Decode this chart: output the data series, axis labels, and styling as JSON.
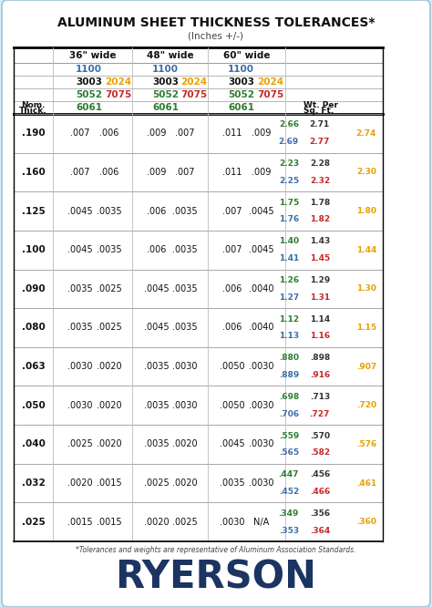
{
  "title": "ALUMINUM SHEET THICKNESS TOLERANCES*",
  "subtitle": "(Inches +/-)",
  "footnote": "*Tolerances and weights are representative of Aluminum Association Standards.",
  "bg_color": "#ddeef8",
  "card_color": "#ffffff",
  "header_row1": [
    "36\" wide",
    "48\" wide",
    "60\" wide"
  ],
  "ryerson_color": "#1c3461",
  "data_rows": [
    {
      "thick": ".190",
      "tol36": [
        ".007",
        ".006"
      ],
      "tol48": [
        ".009",
        ".007"
      ],
      "tol60": [
        ".011",
        ".009"
      ],
      "wt_line1": [
        {
          "text": "2.66",
          "color": "#2e7d32"
        },
        {
          "text": "2.71",
          "color": "#333333"
        }
      ],
      "wt_line2": [
        {
          "text": "2.69",
          "color": "#3b6daa"
        },
        {
          "text": "2.77",
          "color": "#c62828"
        }
      ],
      "wt_2024": {
        "text": "2.74",
        "color": "#e8a000"
      }
    },
    {
      "thick": ".160",
      "tol36": [
        ".007",
        ".006"
      ],
      "tol48": [
        ".009",
        ".007"
      ],
      "tol60": [
        ".011",
        ".009"
      ],
      "wt_line1": [
        {
          "text": "2.23",
          "color": "#2e7d32"
        },
        {
          "text": "2.28",
          "color": "#333333"
        }
      ],
      "wt_line2": [
        {
          "text": "2.25",
          "color": "#3b6daa"
        },
        {
          "text": "2.32",
          "color": "#c62828"
        }
      ],
      "wt_2024": {
        "text": "2.30",
        "color": "#e8a000"
      }
    },
    {
      "thick": ".125",
      "tol36": [
        ".0045",
        ".0035"
      ],
      "tol48": [
        ".006",
        ".0035"
      ],
      "tol60": [
        ".007",
        ".0045"
      ],
      "wt_line1": [
        {
          "text": "1.75",
          "color": "#2e7d32"
        },
        {
          "text": "1.78",
          "color": "#333333"
        }
      ],
      "wt_line2": [
        {
          "text": "1.76",
          "color": "#3b6daa"
        },
        {
          "text": "1.82",
          "color": "#c62828"
        }
      ],
      "wt_2024": {
        "text": "1.80",
        "color": "#e8a000"
      }
    },
    {
      "thick": ".100",
      "tol36": [
        ".0045",
        ".0035"
      ],
      "tol48": [
        ".006",
        ".0035"
      ],
      "tol60": [
        ".007",
        ".0045"
      ],
      "wt_line1": [
        {
          "text": "1.40",
          "color": "#2e7d32"
        },
        {
          "text": "1.43",
          "color": "#333333"
        }
      ],
      "wt_line2": [
        {
          "text": "1.41",
          "color": "#3b6daa"
        },
        {
          "text": "1.45",
          "color": "#c62828"
        }
      ],
      "wt_2024": {
        "text": "1.44",
        "color": "#e8a000"
      }
    },
    {
      "thick": ".090",
      "tol36": [
        ".0035",
        ".0025"
      ],
      "tol48": [
        ".0045",
        ".0035"
      ],
      "tol60": [
        ".006",
        ".0040"
      ],
      "wt_line1": [
        {
          "text": "1.26",
          "color": "#2e7d32"
        },
        {
          "text": "1.29",
          "color": "#333333"
        }
      ],
      "wt_line2": [
        {
          "text": "1.27",
          "color": "#3b6daa"
        },
        {
          "text": "1.31",
          "color": "#c62828"
        }
      ],
      "wt_2024": {
        "text": "1.30",
        "color": "#e8a000"
      }
    },
    {
      "thick": ".080",
      "tol36": [
        ".0035",
        ".0025"
      ],
      "tol48": [
        ".0045",
        ".0035"
      ],
      "tol60": [
        ".006",
        ".0040"
      ],
      "wt_line1": [
        {
          "text": "1.12",
          "color": "#2e7d32"
        },
        {
          "text": "1.14",
          "color": "#333333"
        }
      ],
      "wt_line2": [
        {
          "text": "1.13",
          "color": "#3b6daa"
        },
        {
          "text": "1.16",
          "color": "#c62828"
        }
      ],
      "wt_2024": {
        "text": "1.15",
        "color": "#e8a000"
      }
    },
    {
      "thick": ".063",
      "tol36": [
        ".0030",
        ".0020"
      ],
      "tol48": [
        ".0035",
        ".0030"
      ],
      "tol60": [
        ".0050",
        ".0030"
      ],
      "wt_line1": [
        {
          "text": ".880",
          "color": "#2e7d32"
        },
        {
          "text": ".898",
          "color": "#333333"
        }
      ],
      "wt_line2": [
        {
          "text": ".889",
          "color": "#3b6daa"
        },
        {
          "text": ".916",
          "color": "#c62828"
        }
      ],
      "wt_2024": {
        "text": ".907",
        "color": "#e8a000"
      }
    },
    {
      "thick": ".050",
      "tol36": [
        ".0030",
        ".0020"
      ],
      "tol48": [
        ".0035",
        ".0030"
      ],
      "tol60": [
        ".0050",
        ".0030"
      ],
      "wt_line1": [
        {
          "text": ".698",
          "color": "#2e7d32"
        },
        {
          "text": ".713",
          "color": "#333333"
        }
      ],
      "wt_line2": [
        {
          "text": ".706",
          "color": "#3b6daa"
        },
        {
          "text": ".727",
          "color": "#c62828"
        }
      ],
      "wt_2024": {
        "text": ".720",
        "color": "#e8a000"
      }
    },
    {
      "thick": ".040",
      "tol36": [
        ".0025",
        ".0020"
      ],
      "tol48": [
        ".0035",
        ".0020"
      ],
      "tol60": [
        ".0045",
        ".0030"
      ],
      "wt_line1": [
        {
          "text": ".559",
          "color": "#2e7d32"
        },
        {
          "text": ".570",
          "color": "#333333"
        }
      ],
      "wt_line2": [
        {
          "text": ".565",
          "color": "#3b6daa"
        },
        {
          "text": ".582",
          "color": "#c62828"
        }
      ],
      "wt_2024": {
        "text": ".576",
        "color": "#e8a000"
      }
    },
    {
      "thick": ".032",
      "tol36": [
        ".0020",
        ".0015"
      ],
      "tol48": [
        ".0025",
        ".0020"
      ],
      "tol60": [
        ".0035",
        ".0030"
      ],
      "wt_line1": [
        {
          "text": ".447",
          "color": "#2e7d32"
        },
        {
          "text": ".456",
          "color": "#333333"
        }
      ],
      "wt_line2": [
        {
          "text": ".452",
          "color": "#3b6daa"
        },
        {
          "text": ".466",
          "color": "#c62828"
        }
      ],
      "wt_2024": {
        "text": ".461",
        "color": "#e8a000"
      }
    },
    {
      "thick": ".025",
      "tol36": [
        ".0015",
        ".0015"
      ],
      "tol48": [
        ".0020",
        ".0025"
      ],
      "tol60": [
        ".0030",
        "N/A"
      ],
      "wt_line1": [
        {
          "text": ".349",
          "color": "#2e7d32"
        },
        {
          "text": ".356",
          "color": "#333333"
        }
      ],
      "wt_line2": [
        {
          "text": ".353",
          "color": "#3b6daa"
        },
        {
          "text": ".364",
          "color": "#c62828"
        }
      ],
      "wt_2024": {
        "text": ".360",
        "color": "#e8a000"
      }
    }
  ]
}
